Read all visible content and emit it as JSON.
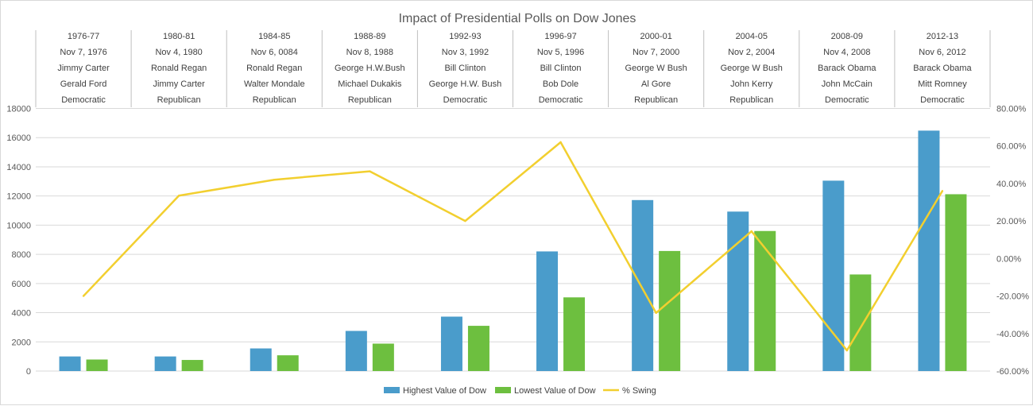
{
  "chart_data": {
    "type": "bar",
    "title": "Impact of Presidential Polls on Dow Jones",
    "header_rows": [
      [
        "1976-77",
        "Nov 7, 1976",
        "Jimmy Carter",
        "Gerald Ford",
        "Democratic"
      ],
      [
        "1980-81",
        "Nov 4, 1980",
        "Ronald Regan",
        "Jimmy Carter",
        "Republican"
      ],
      [
        "1984-85",
        "Nov 6, 0084",
        "Ronald Regan",
        "Walter Mondale",
        "Republican"
      ],
      [
        "1988-89",
        "Nov 8, 1988",
        "George H.W.Bush",
        "Michael Dukakis",
        "Republican"
      ],
      [
        "1992-93",
        "Nov 3, 1992",
        "Bill Clinton",
        "George H.W. Bush",
        "Democratic"
      ],
      [
        "1996-97",
        "Nov 5, 1996",
        "Bill Clinton",
        "Bob Dole",
        "Democratic"
      ],
      [
        "2000-01",
        "Nov 7, 2000",
        "George W Bush",
        "Al Gore",
        "Republican"
      ],
      [
        "2004-05",
        "Nov 2, 2004",
        "George W Bush",
        "John Kerry",
        "Republican"
      ],
      [
        "2008-09",
        "Nov 4, 2008",
        "Barack Obama",
        "John McCain",
        "Democratic"
      ],
      [
        "2012-13",
        "Nov 6, 2012",
        "Barack Obama",
        "Mitt Romney",
        "Democratic"
      ]
    ],
    "series": [
      {
        "name": "Highest Value of Dow",
        "type": "bar",
        "axis": "left",
        "color": "#4a9ccb",
        "values": [
          1000,
          1000,
          1550,
          2750,
          3730,
          8200,
          11720,
          10930,
          13050,
          16480
        ]
      },
      {
        "name": "Lowest Value of Dow",
        "type": "bar",
        "axis": "left",
        "color": "#6dbf3f",
        "values": [
          790,
          760,
          1080,
          1880,
          3100,
          5050,
          8230,
          9600,
          6620,
          12120
        ]
      },
      {
        "name": "% Swing",
        "type": "line",
        "axis": "right",
        "color": "#f2cf2f",
        "values": [
          -20.0,
          33.5,
          42.0,
          46.5,
          20.0,
          62.0,
          -29.0,
          14.5,
          -49.0,
          36.0
        ]
      }
    ],
    "ylim_left": [
      0,
      18000
    ],
    "yticks_left": [
      "0",
      "2000",
      "4000",
      "6000",
      "8000",
      "10000",
      "12000",
      "14000",
      "16000",
      "18000"
    ],
    "ylim_right": [
      -60,
      80
    ],
    "yticks_right": [
      "-60.00%",
      "-40.00%",
      "-20.00%",
      "0.00%",
      "20.00%",
      "40.00%",
      "60.00%",
      "80.00%"
    ],
    "grid": true,
    "legend_position": "bottom"
  },
  "colors": {
    "grid": "#d9d9d9",
    "header_divider": "#bfbfbf"
  }
}
